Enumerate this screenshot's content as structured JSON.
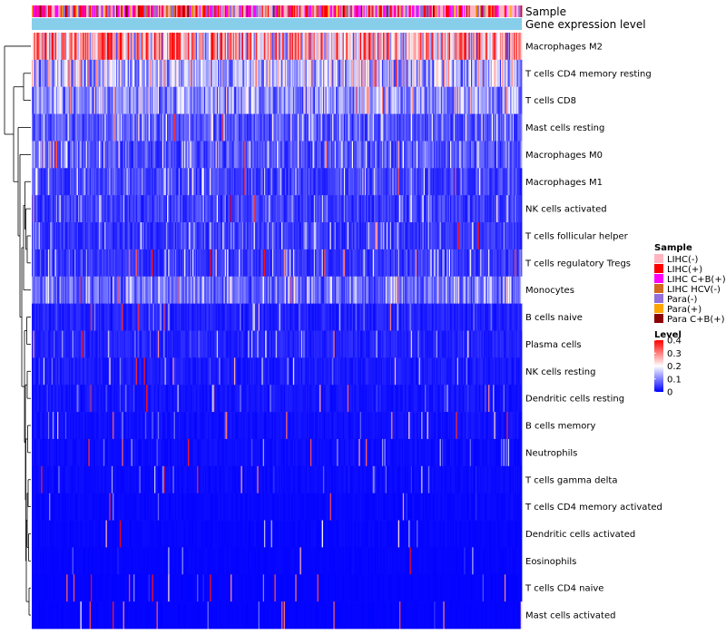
{
  "chart_data": {
    "type": "heatmap",
    "column_annotations": [
      {
        "name": "Sample"
      },
      {
        "name": "Gene expression level"
      }
    ],
    "rows": [
      {
        "label": "Macrophages M2",
        "mean": 0.28
      },
      {
        "label": "T cells CD4 memory resting",
        "mean": 0.12
      },
      {
        "label": "T cells CD8",
        "mean": 0.1
      },
      {
        "label": "Mast cells resting",
        "mean": 0.06
      },
      {
        "label": "Macrophages M0",
        "mean": 0.06
      },
      {
        "label": "Macrophages M1",
        "mean": 0.05
      },
      {
        "label": "NK cells activated",
        "mean": 0.045
      },
      {
        "label": "T cells follicular helper",
        "mean": 0.04
      },
      {
        "label": "T cells regulatory  Tregs",
        "mean": 0.04
      },
      {
        "label": "Monocytes",
        "mean": 0.07
      },
      {
        "label": "B cells naive",
        "mean": 0.025
      },
      {
        "label": "Plasma cells",
        "mean": 0.025
      },
      {
        "label": "NK cells resting",
        "mean": 0.02
      },
      {
        "label": "Dendritic cells resting",
        "mean": 0.015
      },
      {
        "label": "B cells memory",
        "mean": 0.012
      },
      {
        "label": "Neutrophils",
        "mean": 0.01
      },
      {
        "label": "T cells gamma delta",
        "mean": 0.008
      },
      {
        "label": "T cells CD4 memory activated",
        "mean": 0.006
      },
      {
        "label": "Dendritic cells activated",
        "mean": 0.005
      },
      {
        "label": "Eosinophils",
        "mean": 0.004
      },
      {
        "label": "T cells CD4 naive",
        "mean": 0.003
      },
      {
        "label": "Mast cells activated",
        "mean": 0.003
      }
    ],
    "n_columns": 424,
    "sample_legend": {
      "title": "Sample",
      "items": [
        {
          "label": "LIHC(-)",
          "color": "#ffb6c1"
        },
        {
          "label": "LIHC(+)",
          "color": "#ff0000"
        },
        {
          "label": "LIHC C+B(+)",
          "color": "#ff00ff"
        },
        {
          "label": "LIHC HCV(-)",
          "color": "#d2691e"
        },
        {
          "label": "Para(-)",
          "color": "#9370db"
        },
        {
          "label": "Para(+)",
          "color": "#ffa500"
        },
        {
          "label": "Para C+B(+)",
          "color": "#8b0000"
        }
      ]
    },
    "level_legend": {
      "title": "Level",
      "ticks": [
        "0.4",
        "0.3",
        "0.2",
        "0.1",
        "0"
      ],
      "range": [
        0,
        0.4
      ],
      "colors": [
        "#0000ff",
        "#ffffff",
        "#ff0000"
      ]
    },
    "gene_expression_color": "#87ceeb"
  }
}
